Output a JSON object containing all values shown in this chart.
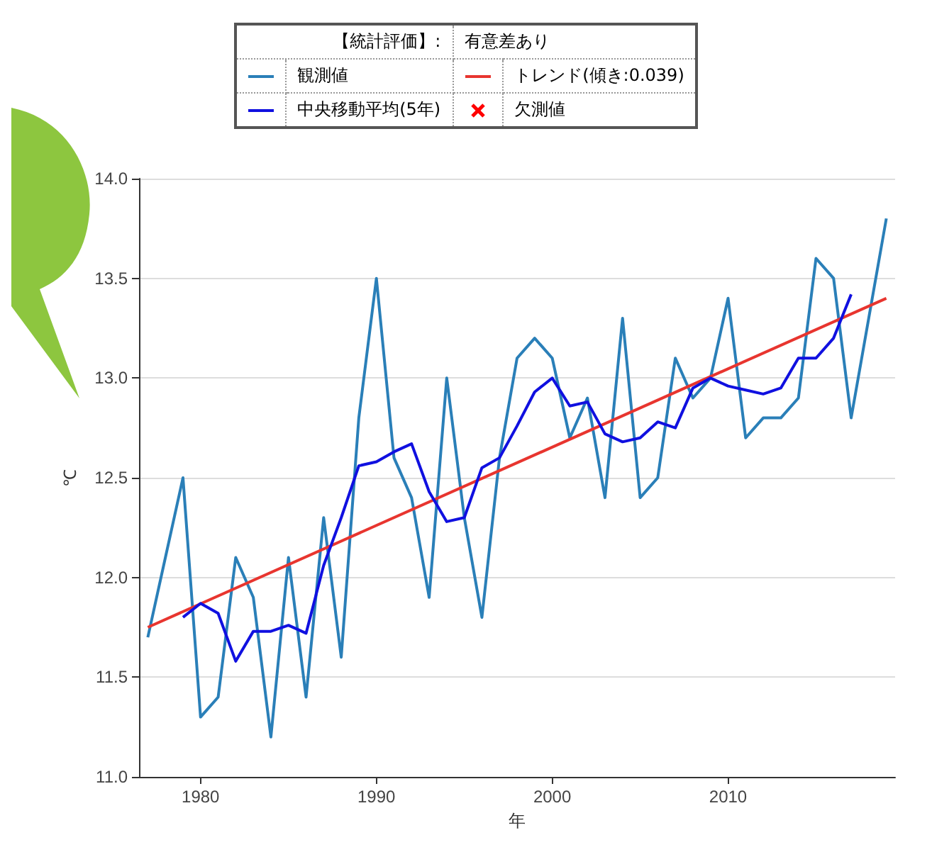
{
  "chart_data": {
    "type": "line",
    "xlabel": "年",
    "ylabel": "℃",
    "annotations": [
      "【統計評価】:",
      "有意差あり"
    ],
    "legend": "top",
    "grid": "y",
    "marker": "none",
    "line_style": "solid",
    "x": [
      1977,
      1978,
      1979,
      1980,
      1981,
      1982,
      1983,
      1984,
      1985,
      1986,
      1987,
      1988,
      1989,
      1990,
      1991,
      1992,
      1993,
      1994,
      1995,
      1996,
      1997,
      1998,
      1999,
      2000,
      2001,
      2002,
      2003,
      2004,
      2005,
      2006,
      2007,
      2008,
      2009,
      2010,
      2011,
      2012,
      2013,
      2014,
      2015,
      2016,
      2017,
      2018,
      2019
    ],
    "xlim": [
      1976.5,
      2019.5
    ],
    "xticks": [
      1980,
      1990,
      2000,
      2010
    ],
    "ylim": [
      11.0,
      14.0
    ],
    "yticks": [
      {
        "value": 11.0,
        "label": "11.0"
      },
      {
        "value": 11.5,
        "label": "11.5"
      },
      {
        "value": 12.0,
        "label": "12.0"
      },
      {
        "value": 12.5,
        "label": "12.5"
      },
      {
        "value": 13.0,
        "label": "13.0"
      },
      {
        "value": 13.5,
        "label": "13.5"
      },
      {
        "value": 14.0,
        "label": "14.0"
      }
    ],
    "series": [
      {
        "name": "観測値",
        "color": "#2a7fb8",
        "values": [
          11.7,
          12.1,
          12.5,
          11.3,
          11.4,
          12.1,
          11.9,
          11.2,
          12.1,
          11.4,
          12.3,
          11.6,
          12.8,
          13.5,
          12.6,
          12.4,
          11.9,
          13.0,
          12.3,
          11.8,
          12.6,
          13.1,
          13.2,
          13.1,
          12.7,
          12.9,
          12.4,
          13.3,
          12.4,
          12.5,
          13.1,
          12.9,
          13.0,
          13.4,
          12.7,
          12.8,
          12.8,
          12.9,
          13.6,
          13.5,
          12.8,
          13.3,
          13.8
        ]
      },
      {
        "name": "トレンド(傾き:0.039)",
        "color": "#e8352f",
        "x": [
          1977,
          2019
        ],
        "values": [
          11.75,
          13.4
        ]
      },
      {
        "name": "中央移動平均(5年)",
        "color": "#1010e0",
        "x": [
          1979,
          1980,
          1981,
          1982,
          1983,
          1984,
          1985,
          1986,
          1987,
          1988,
          1989,
          1990,
          1991,
          1992,
          1993,
          1994,
          1995,
          1996,
          1997,
          1998,
          1999,
          2000,
          2001,
          2002,
          2003,
          2004,
          2005,
          2006,
          2007,
          2008,
          2009,
          2010,
          2011,
          2012,
          2013,
          2014,
          2015,
          2016,
          2017
        ],
        "values": [
          11.8,
          11.87,
          11.82,
          11.58,
          11.73,
          11.73,
          11.76,
          11.72,
          12.06,
          12.3,
          12.56,
          12.58,
          12.63,
          12.67,
          12.43,
          12.28,
          12.3,
          12.55,
          12.6,
          12.76,
          12.93,
          13.0,
          12.86,
          12.88,
          12.72,
          12.68,
          12.7,
          12.78,
          12.75,
          12.95,
          13.0,
          12.96,
          12.94,
          12.92,
          12.95,
          13.1,
          13.1,
          13.2,
          13.42
        ]
      },
      {
        "name": "欠測値",
        "type": "scatter",
        "marker": "cross",
        "color": "#ff0000",
        "values": [
          null,
          null,
          null,
          null,
          null,
          null,
          null,
          null,
          null,
          null,
          null,
          null,
          null,
          null,
          null,
          null,
          null,
          null,
          null,
          null,
          null,
          null,
          null,
          null,
          null,
          null,
          null,
          null,
          null,
          null,
          null,
          null,
          null,
          null,
          null,
          null,
          null,
          null,
          null,
          null,
          null,
          null,
          null
        ]
      }
    ]
  }
}
